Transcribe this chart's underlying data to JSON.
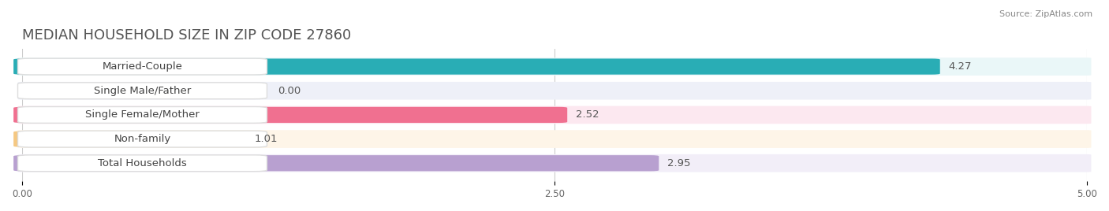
{
  "title": "MEDIAN HOUSEHOLD SIZE IN ZIP CODE 27860",
  "source": "Source: ZipAtlas.com",
  "categories": [
    "Married-Couple",
    "Single Male/Father",
    "Single Female/Mother",
    "Non-family",
    "Total Households"
  ],
  "values": [
    4.27,
    0.0,
    2.52,
    1.01,
    2.95
  ],
  "bar_colors": [
    "#29adb5",
    "#a0b4e0",
    "#f07090",
    "#f5c882",
    "#b8a0d0"
  ],
  "bg_colors": [
    "#eaf7f8",
    "#eef0f8",
    "#fce8f0",
    "#fef5e8",
    "#f2eef8"
  ],
  "row_bg": "#f0f0f0",
  "xlim": [
    0,
    5.0
  ],
  "xticks": [
    0.0,
    2.5,
    5.0
  ],
  "xtick_labels": [
    "0.00",
    "2.50",
    "5.00"
  ],
  "title_fontsize": 13,
  "label_fontsize": 9.5,
  "value_fontsize": 9.5,
  "bar_height": 0.58,
  "figsize": [
    14.06,
    2.68
  ],
  "dpi": 100
}
